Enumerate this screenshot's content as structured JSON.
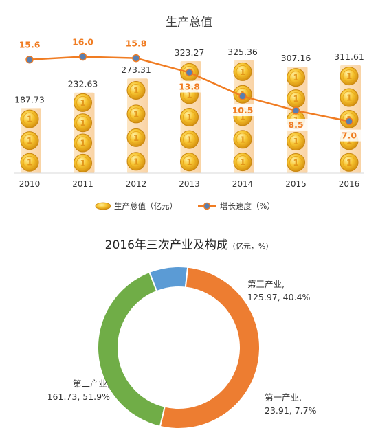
{
  "chart_data": [
    {
      "type": "bar",
      "title": "生产总值",
      "categories": [
        "2010",
        "2011",
        "2012",
        "2013",
        "2014",
        "2015",
        "2016"
      ],
      "series": [
        {
          "name": "生产总值（亿元）",
          "type": "bar",
          "values": [
            187.73,
            232.63,
            273.31,
            323.27,
            325.36,
            307.16,
            311.61
          ],
          "labels": [
            "187.73",
            "232.63",
            "273.31",
            "323.27",
            "325.36",
            "307.16",
            "311.61"
          ]
        },
        {
          "name": "增长速度（%）",
          "type": "line",
          "values": [
            15.6,
            16.0,
            15.8,
            13.8,
            10.5,
            8.5,
            7.0
          ],
          "labels": [
            "15.6",
            "16.0",
            "15.8",
            "13.8",
            "10.5",
            "8.5",
            "7.0"
          ]
        }
      ],
      "legend": "bottom",
      "grid": false,
      "colors": {
        "coin": "#f2b21a",
        "line": "#f07c22",
        "marker": "#5a7fb0"
      }
    },
    {
      "type": "pie",
      "variant": "donut",
      "title": "2016年三次产业及构成",
      "unit": "（亿元，%）",
      "slices": [
        {
          "name": "第一产业",
          "value": 23.91,
          "percent": 7.7,
          "label": "23.91, 7.7%",
          "color": "#5b9bd5"
        },
        {
          "name": "第二产业",
          "value": 161.73,
          "percent": 51.9,
          "label": "161.73, 51.9%",
          "color": "#ed7d31"
        },
        {
          "name": "第三产业",
          "value": 125.97,
          "percent": 40.4,
          "label": "125.97, 40.4%",
          "color": "#70ad47"
        }
      ]
    }
  ]
}
